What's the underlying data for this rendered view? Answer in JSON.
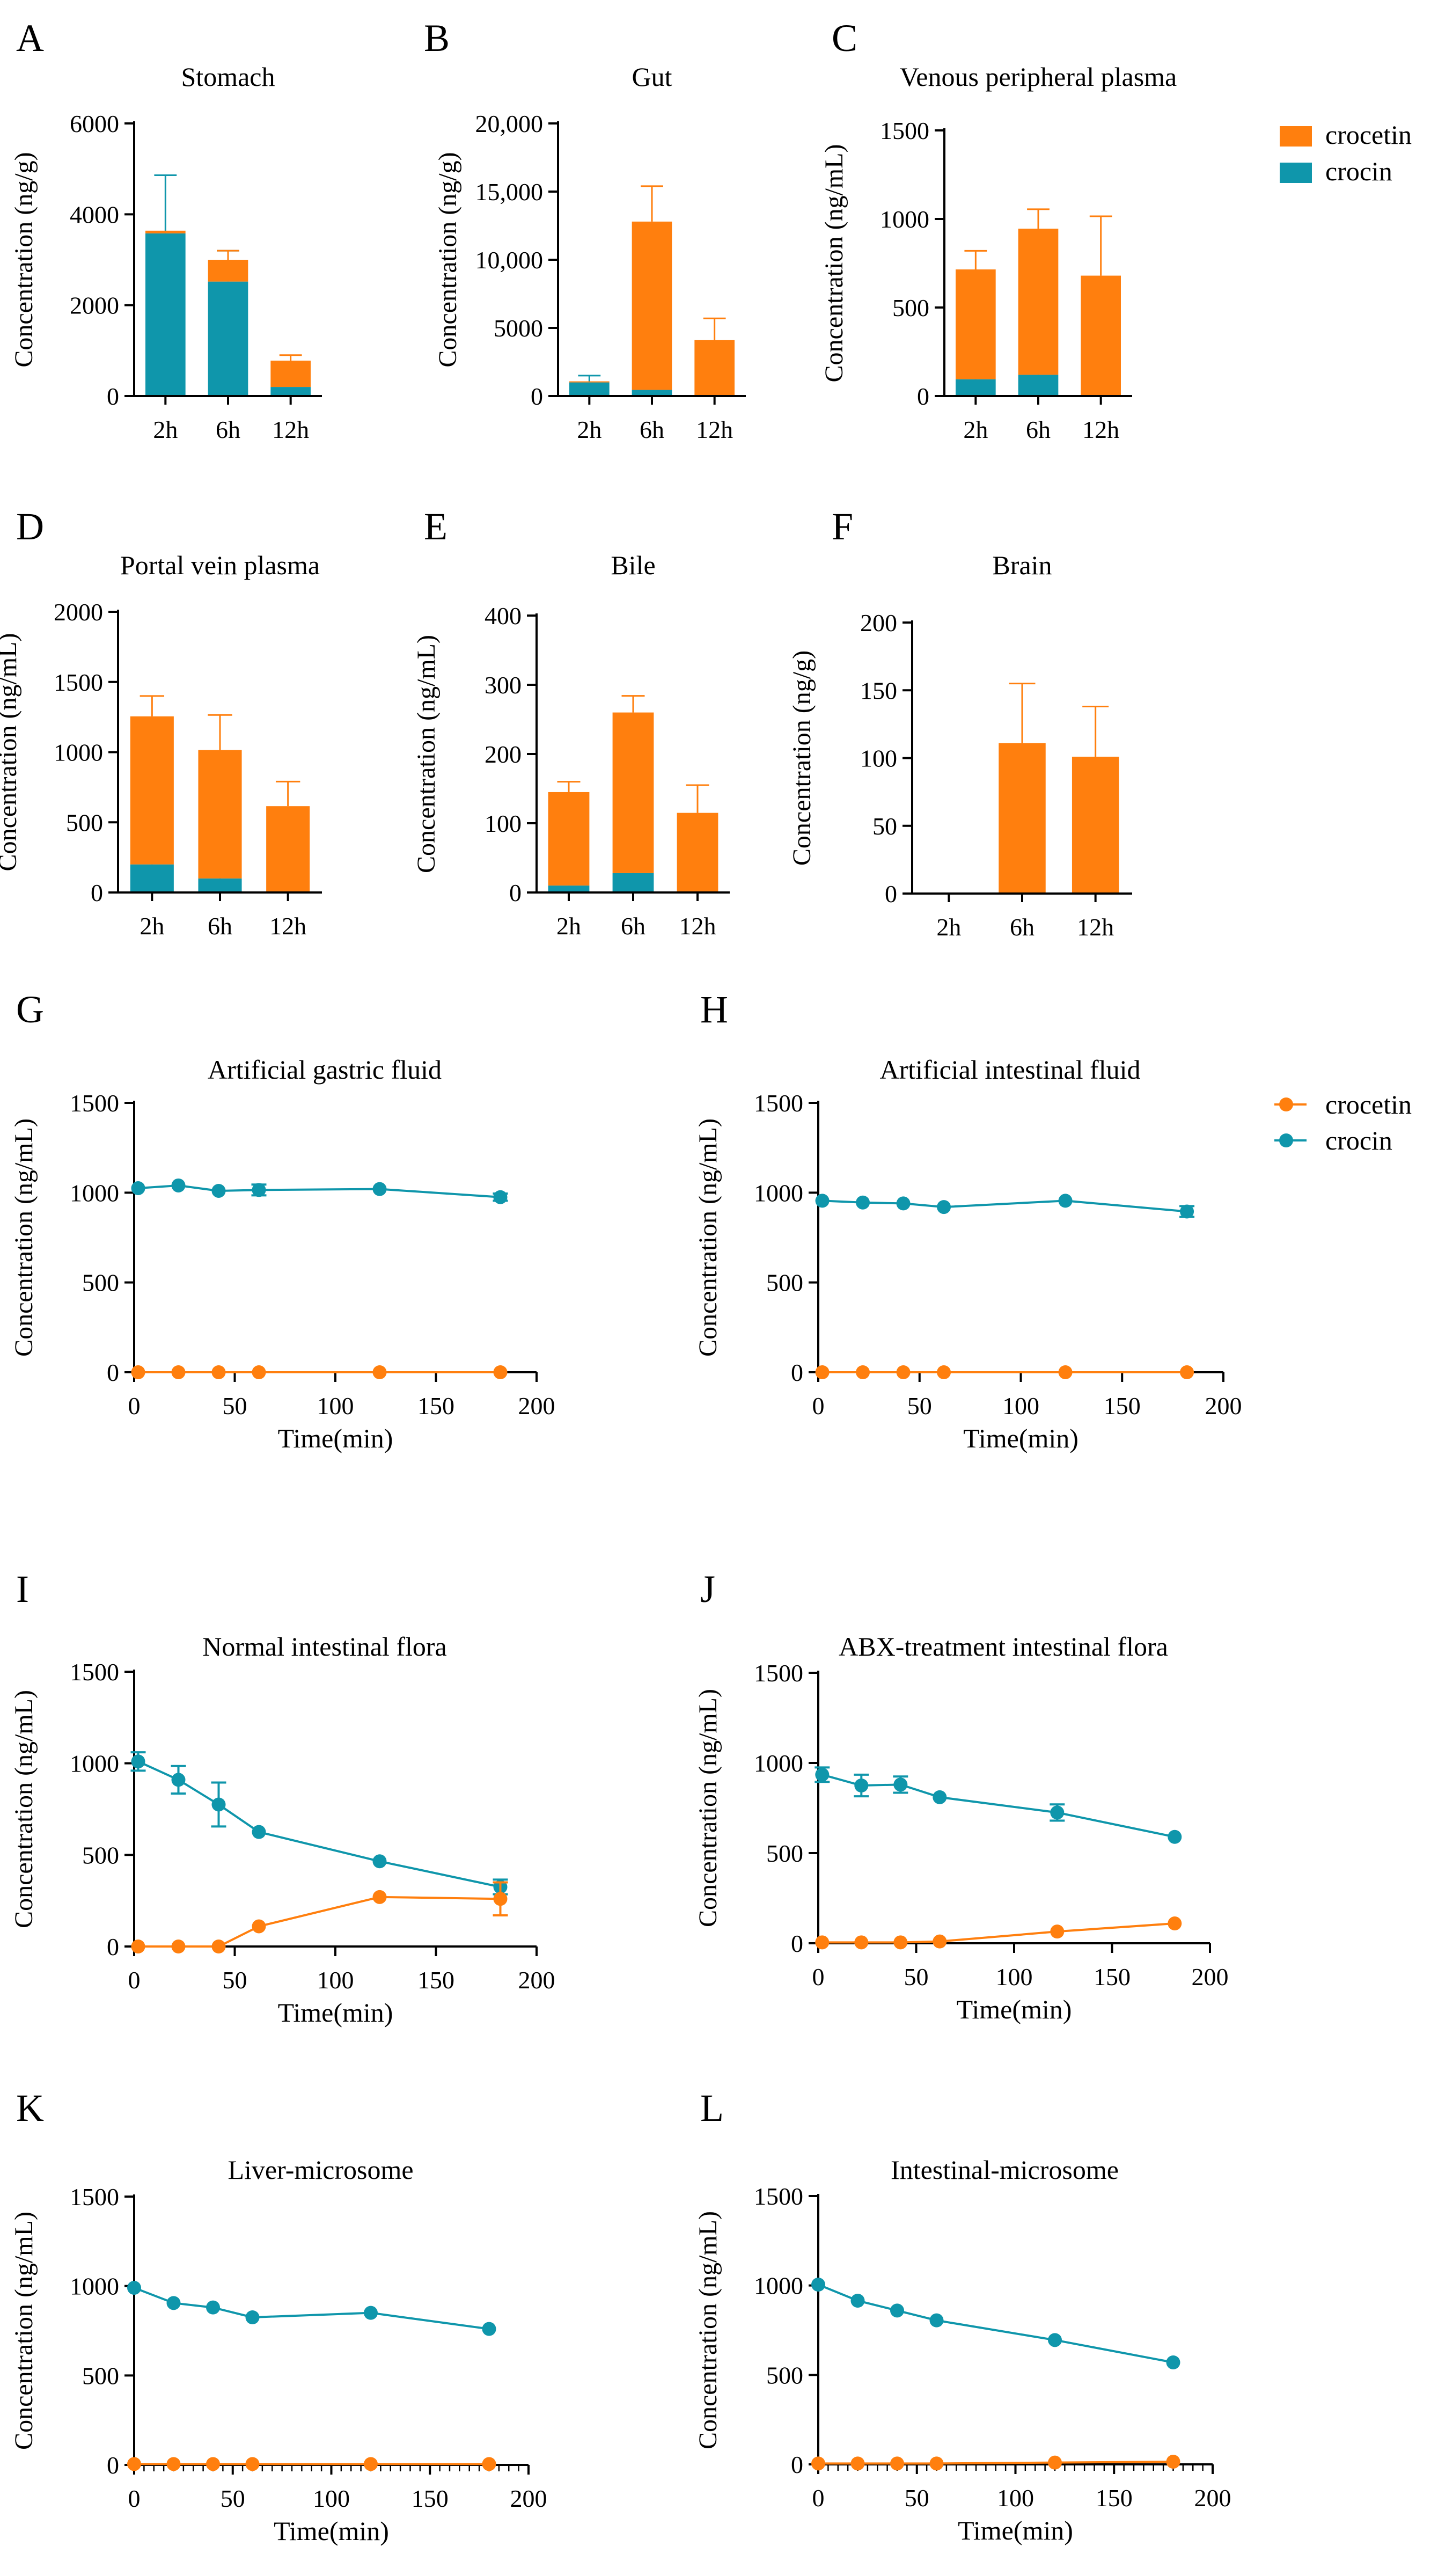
{
  "colors": {
    "crocetin": "#ff7f0e",
    "crocin": "#0f96ab",
    "axis": "#000000",
    "background": "#ffffff"
  },
  "bar_legend": [
    {
      "name": "crocetin",
      "color": "#ff7f0e"
    },
    {
      "name": "crocin",
      "color": "#0f96ab"
    }
  ],
  "line_legend": [
    {
      "name": "crocetin",
      "color": "#ff7f0e"
    },
    {
      "name": "crocin",
      "color": "#0f96ab"
    }
  ],
  "chart_data": [
    {
      "panel": "A",
      "type": "bar",
      "stacked": true,
      "title": "Stomach",
      "ylabel": "Concentration (ng/g)",
      "xlabel": "",
      "categories": [
        "2h",
        "6h",
        "12h"
      ],
      "ylim": [
        0,
        6000
      ],
      "yticks": [
        0,
        2000,
        4000,
        6000
      ],
      "ytick_labels": [
        "0",
        "2000",
        "4000",
        "6000"
      ],
      "series": [
        {
          "name": "crocin",
          "values": [
            3580,
            2520,
            200
          ],
          "errors": [
            1280,
            680,
            120
          ]
        },
        {
          "name": "crocetin",
          "values": [
            60,
            480,
            580
          ],
          "errors": [
            0,
            200,
            120
          ]
        }
      ]
    },
    {
      "panel": "B",
      "type": "bar",
      "stacked": true,
      "title": "Gut",
      "ylabel": "Concentration (ng/g)",
      "xlabel": "",
      "categories": [
        "2h",
        "6h",
        "12h"
      ],
      "ylim": [
        0,
        20000
      ],
      "yticks": [
        0,
        5000,
        10000,
        15000,
        20000
      ],
      "ytick_labels": [
        "0",
        "5000",
        "10,000",
        "15,000",
        "20,000"
      ],
      "series": [
        {
          "name": "crocin",
          "values": [
            1000,
            450,
            60
          ],
          "errors": [
            500,
            150,
            30
          ]
        },
        {
          "name": "crocetin",
          "values": [
            80,
            12350,
            4040
          ],
          "errors": [
            0,
            2600,
            1600
          ]
        }
      ]
    },
    {
      "panel": "C",
      "type": "bar",
      "stacked": true,
      "title": "Venous peripheral plasma",
      "ylabel": "Concentration (ng/mL)",
      "xlabel": "",
      "categories": [
        "2h",
        "6h",
        "12h"
      ],
      "ylim": [
        0,
        1500
      ],
      "yticks": [
        0,
        500,
        1000,
        1500
      ],
      "ytick_labels": [
        "0",
        "500",
        "1000",
        "1500"
      ],
      "series": [
        {
          "name": "crocin",
          "values": [
            95,
            120,
            5
          ],
          "errors": [
            15,
            20,
            0
          ]
        },
        {
          "name": "crocetin",
          "values": [
            620,
            825,
            675
          ],
          "errors": [
            105,
            110,
            335
          ]
        }
      ]
    },
    {
      "panel": "D",
      "type": "bar",
      "stacked": true,
      "title": "Portal vein plasma",
      "ylabel": "Concentration (ng/mL)",
      "xlabel": "",
      "categories": [
        "2h",
        "6h",
        "12h"
      ],
      "ylim": [
        0,
        2000
      ],
      "yticks": [
        0,
        500,
        1000,
        1500,
        2000
      ],
      "ytick_labels": [
        "0",
        "500",
        "1000",
        "1500",
        "2000"
      ],
      "series": [
        {
          "name": "crocin",
          "values": [
            200,
            100,
            5
          ],
          "errors": [
            40,
            20,
            0
          ]
        },
        {
          "name": "crocetin",
          "values": [
            1055,
            915,
            610
          ],
          "errors": [
            145,
            250,
            175
          ]
        }
      ]
    },
    {
      "panel": "E",
      "type": "bar",
      "stacked": true,
      "title": "Bile",
      "ylabel": "Concentration (ng/mL)",
      "xlabel": "",
      "categories": [
        "2h",
        "6h",
        "12h"
      ],
      "ylim": [
        0,
        400
      ],
      "yticks": [
        0,
        100,
        200,
        300,
        400
      ],
      "ytick_labels": [
        "0",
        "100",
        "200",
        "300",
        "400"
      ],
      "series": [
        {
          "name": "crocin",
          "values": [
            10,
            28,
            0
          ],
          "errors": [
            4,
            14,
            0
          ]
        },
        {
          "name": "crocetin",
          "values": [
            135,
            232,
            115
          ],
          "errors": [
            15,
            24,
            40
          ]
        }
      ]
    },
    {
      "panel": "F",
      "type": "bar",
      "stacked": true,
      "title": "Brain",
      "ylabel": "Concentration (ng/g)",
      "xlabel": "",
      "categories": [
        "2h",
        "6h",
        "12h"
      ],
      "ylim": [
        0,
        200
      ],
      "yticks": [
        0,
        50,
        100,
        150,
        200
      ],
      "ytick_labels": [
        "0",
        "50",
        "100",
        "150",
        "200"
      ],
      "series": [
        {
          "name": "crocin",
          "values": [
            0,
            0,
            0
          ],
          "errors": [
            0,
            0,
            0
          ]
        },
        {
          "name": "crocetin",
          "values": [
            0,
            111,
            101
          ],
          "errors": [
            0,
            44,
            37
          ]
        }
      ]
    },
    {
      "panel": "G",
      "type": "line",
      "title": "Artificial gastric fluid",
      "ylabel": "Concentration (ng/mL)",
      "xlabel": "Time(min)",
      "xlim": [
        0,
        200
      ],
      "ylim": [
        0,
        1500
      ],
      "xticks": [
        0,
        50,
        100,
        150,
        200
      ],
      "yticks": [
        0,
        500,
        1000,
        1500
      ],
      "minor_xticks": false,
      "series": [
        {
          "name": "crocin",
          "x": [
            2,
            22,
            42,
            62,
            122,
            182
          ],
          "y": [
            1025,
            1040,
            1010,
            1015,
            1020,
            975
          ],
          "errors": [
            0,
            0,
            0,
            30,
            0,
            20
          ]
        },
        {
          "name": "crocetin",
          "x": [
            2,
            22,
            42,
            62,
            122,
            182
          ],
          "y": [
            0,
            0,
            0,
            0,
            0,
            0
          ],
          "errors": [
            0,
            0,
            0,
            0,
            0,
            0
          ]
        }
      ]
    },
    {
      "panel": "H",
      "type": "line",
      "title": "Artificial intestinal fluid",
      "ylabel": "Concentration (ng/mL)",
      "xlabel": "Time(min)",
      "xlim": [
        0,
        200
      ],
      "ylim": [
        0,
        1500
      ],
      "xticks": [
        0,
        50,
        100,
        150,
        200
      ],
      "yticks": [
        0,
        500,
        1000,
        1500
      ],
      "minor_xticks": false,
      "series": [
        {
          "name": "crocin",
          "x": [
            2,
            22,
            42,
            62,
            122,
            182
          ],
          "y": [
            955,
            945,
            940,
            920,
            955,
            895
          ],
          "errors": [
            0,
            0,
            0,
            0,
            0,
            30
          ]
        },
        {
          "name": "crocetin",
          "x": [
            2,
            22,
            42,
            62,
            122,
            182
          ],
          "y": [
            0,
            0,
            0,
            0,
            0,
            0
          ],
          "errors": [
            0,
            0,
            0,
            0,
            0,
            0
          ]
        }
      ]
    },
    {
      "panel": "I",
      "type": "line",
      "title": "Normal intestinal flora",
      "ylabel": "Concentration (ng/mL)",
      "xlabel": "Time(min)",
      "xlim": [
        0,
        200
      ],
      "ylim": [
        0,
        1500
      ],
      "xticks": [
        0,
        50,
        100,
        150,
        200
      ],
      "yticks": [
        0,
        500,
        1000,
        1500
      ],
      "minor_xticks": false,
      "series": [
        {
          "name": "crocin",
          "x": [
            2,
            22,
            42,
            62,
            122,
            182
          ],
          "y": [
            1010,
            910,
            775,
            625,
            465,
            325
          ],
          "errors": [
            50,
            75,
            120,
            0,
            0,
            40
          ]
        },
        {
          "name": "crocetin",
          "x": [
            2,
            22,
            42,
            62,
            122,
            182
          ],
          "y": [
            0,
            0,
            0,
            110,
            270,
            260
          ],
          "errors": [
            0,
            0,
            0,
            0,
            0,
            90
          ]
        }
      ]
    },
    {
      "panel": "J",
      "type": "line",
      "title": "ABX-treatment intestinal flora",
      "ylabel": "Concentration (ng/mL)",
      "xlabel": "Time(min)",
      "xlim": [
        0,
        200
      ],
      "ylim": [
        0,
        1500
      ],
      "xticks": [
        0,
        50,
        100,
        150,
        200
      ],
      "yticks": [
        0,
        500,
        1000,
        1500
      ],
      "minor_xticks": false,
      "series": [
        {
          "name": "crocin",
          "x": [
            2,
            22,
            42,
            62,
            122,
            182
          ],
          "y": [
            935,
            875,
            880,
            810,
            725,
            590
          ],
          "errors": [
            40,
            60,
            45,
            0,
            45,
            0
          ]
        },
        {
          "name": "crocetin",
          "x": [
            2,
            22,
            42,
            62,
            122,
            182
          ],
          "y": [
            5,
            5,
            5,
            10,
            65,
            110
          ],
          "errors": [
            0,
            0,
            0,
            0,
            0,
            0
          ]
        }
      ]
    },
    {
      "panel": "K",
      "type": "line",
      "title": "Liver-microsome",
      "ylabel": "Concentration (ng/mL)",
      "xlabel": "Time(min)",
      "xlim": [
        0,
        200
      ],
      "ylim": [
        0,
        1500
      ],
      "xticks": [
        0,
        50,
        100,
        150,
        200
      ],
      "yticks": [
        0,
        500,
        1000,
        1500
      ],
      "minor_xticks": true,
      "series": [
        {
          "name": "crocin",
          "x": [
            0,
            20,
            40,
            60,
            120,
            180
          ],
          "y": [
            990,
            905,
            880,
            825,
            850,
            760
          ],
          "errors": [
            0,
            0,
            0,
            0,
            0,
            0
          ]
        },
        {
          "name": "crocetin",
          "x": [
            0,
            20,
            40,
            60,
            120,
            180
          ],
          "y": [
            5,
            5,
            5,
            5,
            5,
            5
          ],
          "errors": [
            0,
            0,
            0,
            0,
            0,
            0
          ]
        }
      ]
    },
    {
      "panel": "L",
      "type": "line",
      "title": "Intestinal-microsome",
      "ylabel": "Concentration (ng/mL)",
      "xlabel": "Time(min)",
      "xlim": [
        0,
        200
      ],
      "ylim": [
        0,
        1500
      ],
      "xticks": [
        0,
        50,
        100,
        150,
        200
      ],
      "yticks": [
        0,
        500,
        1000,
        1500
      ],
      "minor_xticks": true,
      "series": [
        {
          "name": "crocin",
          "x": [
            0,
            20,
            40,
            60,
            120,
            180
          ],
          "y": [
            1005,
            915,
            860,
            805,
            695,
            570
          ],
          "errors": [
            0,
            0,
            0,
            0,
            0,
            0
          ]
        },
        {
          "name": "crocetin",
          "x": [
            0,
            20,
            40,
            60,
            120,
            180
          ],
          "y": [
            5,
            5,
            5,
            5,
            10,
            15
          ],
          "errors": [
            0,
            0,
            0,
            0,
            0,
            0
          ]
        }
      ]
    }
  ]
}
